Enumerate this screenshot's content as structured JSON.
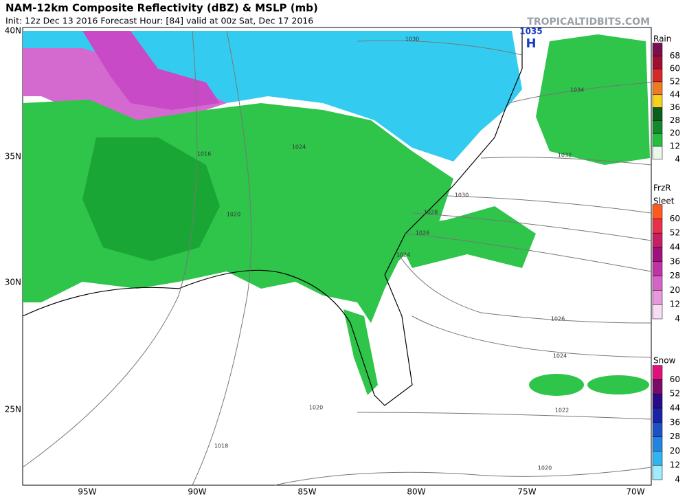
{
  "header": {
    "title": "NAM-12km Composite Reflectivity (dBZ) & MSLP (mb)",
    "subtitle": "Init: 12z Dec 13 2016   Forecast Hour: [84]   valid at 00z Sat, Dec 17 2016",
    "site": "TROPICALTIDBITS.COM"
  },
  "map": {
    "lat_labels": [
      "40N",
      "35N",
      "30N",
      "25N"
    ],
    "lon_labels": [
      "95W",
      "90W",
      "85W",
      "80W",
      "75W",
      "70W"
    ],
    "isobar_labels": [
      "1030",
      "1034",
      "1032",
      "1030",
      "1028",
      "1026",
      "1024",
      "1026",
      "1024",
      "1022",
      "1020",
      "1018",
      "1020",
      "1016",
      "1020",
      "1024"
    ],
    "high": {
      "pressure": "1035",
      "symbol": "H"
    }
  },
  "legend": {
    "rain": {
      "title": "Rain",
      "levels": [
        68,
        60,
        52,
        44,
        36,
        28,
        20,
        12,
        4
      ],
      "colors": [
        "#7a0f4f",
        "#a0102e",
        "#d62828",
        "#f07a22",
        "#f4d21e",
        "#0b5e1c",
        "#12892a",
        "#24be3e",
        "#e8f8ea"
      ]
    },
    "frzr": {
      "title": "FrzR",
      "subtitle": "Sleet",
      "levels": [
        60,
        52,
        44,
        36,
        28,
        20,
        12,
        4
      ],
      "colors": [
        "#ff5a1e",
        "#e8304a",
        "#c81e64",
        "#a01080",
        "#c032a6",
        "#d664c8",
        "#e898dc",
        "#f8dcf4"
      ]
    },
    "snow": {
      "title": "Snow",
      "levels": [
        60,
        52,
        44,
        36,
        28,
        20,
        12,
        4
      ],
      "colors": [
        "#e0107c",
        "#7a0a6a",
        "#2a0a86",
        "#1a22a6",
        "#1c52c8",
        "#2284e2",
        "#30b4f2",
        "#a0ecff"
      ]
    }
  }
}
